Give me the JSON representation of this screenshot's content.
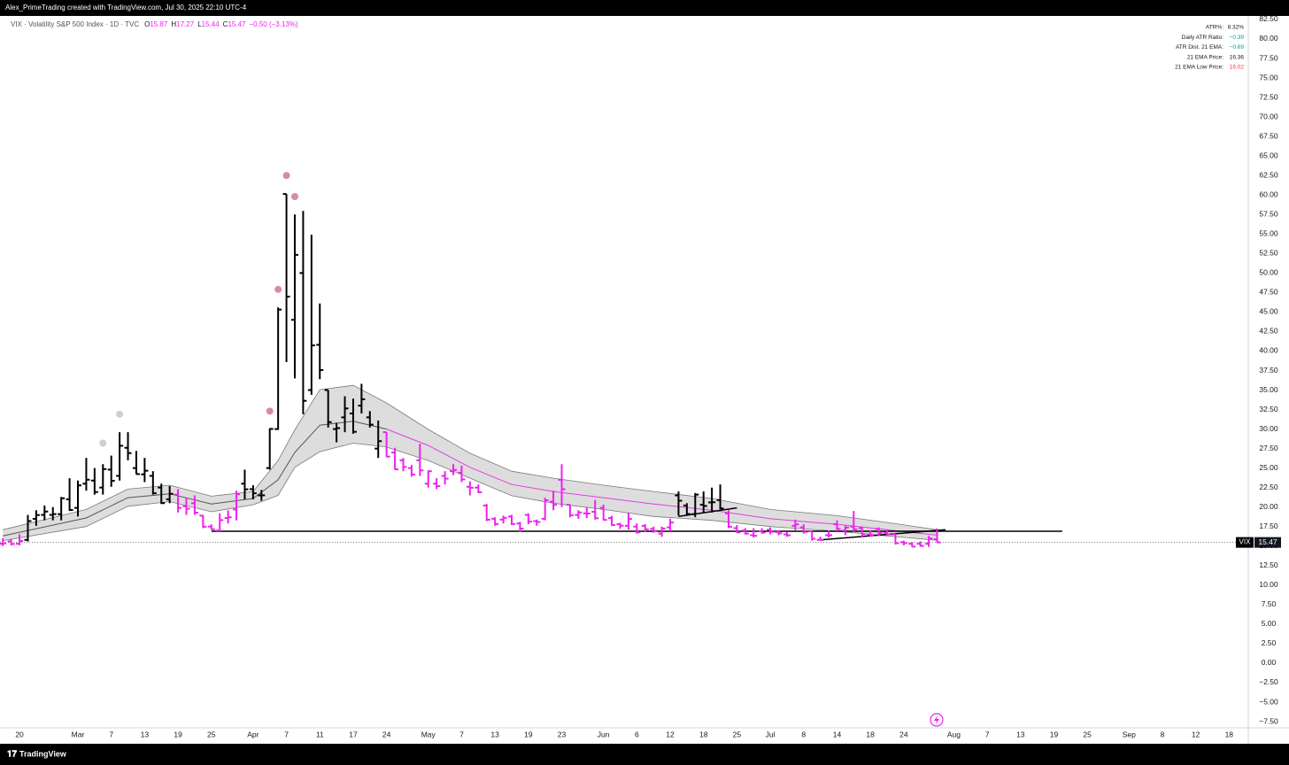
{
  "header": {
    "credit": "Alex_PrimeTrading created with TradingView.com, Jul 30, 2025 22:10 UTC-4",
    "footer": "TradingView"
  },
  "table": {
    "rows": [
      [
        "ATR%:",
        "8.32%"
      ],
      [
        "Daily ATR Ratio:",
        "−0.39"
      ],
      [
        "ATR Dist. 21 EMA:",
        "−0.69"
      ],
      [
        "21 EMA Price:",
        "16.36"
      ],
      [
        "21 EMA Low Price:",
        "16.02"
      ]
    ],
    "value_colors": [
      "#131722",
      "#089981",
      "#089981",
      "#131722",
      "#f23645"
    ]
  },
  "chart_data": {
    "type": "ohlc",
    "title": "VIX · Volatility S&P 500 Index · 1D · TVC",
    "ohlc_keys": [
      "O",
      "H",
      "L",
      "C"
    ],
    "change_label": "−0.50 (−3.13%)",
    "symbol": "VIX",
    "xlim": [
      -0.34,
      149.3
    ],
    "xticks": [
      {
        "value": 2,
        "label": "20"
      },
      {
        "value": 9,
        "label": "Mar"
      },
      {
        "value": 13,
        "label": "7"
      },
      {
        "value": 17,
        "label": "13"
      },
      {
        "value": 21,
        "label": "19"
      },
      {
        "value": 25,
        "label": "25"
      },
      {
        "value": 30,
        "label": "Apr"
      },
      {
        "value": 34,
        "label": "7"
      },
      {
        "value": 38,
        "label": "11"
      },
      {
        "value": 42,
        "label": "17"
      },
      {
        "value": 46,
        "label": "24"
      },
      {
        "value": 51,
        "label": "May"
      },
      {
        "value": 55,
        "label": "7"
      },
      {
        "value": 59,
        "label": "13"
      },
      {
        "value": 63,
        "label": "19"
      },
      {
        "value": 67,
        "label": "23"
      },
      {
        "value": 72,
        "label": "Jun"
      },
      {
        "value": 76,
        "label": "6"
      },
      {
        "value": 80,
        "label": "12"
      },
      {
        "value": 84,
        "label": "18"
      },
      {
        "value": 88,
        "label": "25"
      },
      {
        "value": 92,
        "label": "Jul"
      },
      {
        "value": 96,
        "label": "8"
      },
      {
        "value": 100,
        "label": "14"
      },
      {
        "value": 104,
        "label": "18"
      },
      {
        "value": 108,
        "label": "24"
      },
      {
        "value": 114,
        "label": "Aug"
      },
      {
        "value": 118,
        "label": "7"
      },
      {
        "value": 122,
        "label": "13"
      },
      {
        "value": 126,
        "label": "19"
      },
      {
        "value": 130,
        "label": "25"
      },
      {
        "value": 135,
        "label": "Sep"
      },
      {
        "value": 139,
        "label": "8"
      },
      {
        "value": 143,
        "label": "12"
      },
      {
        "value": 147,
        "label": "18"
      }
    ],
    "ylim": [
      -8.29,
      82.95
    ],
    "yticks": [
      {
        "value": -7.5,
        "label": "−7.50"
      },
      {
        "value": -5,
        "label": "−5.00"
      },
      {
        "value": -2.5,
        "label": "−2.50"
      },
      {
        "value": 0,
        "label": "0.00"
      },
      {
        "value": 2.5,
        "label": "2.50"
      },
      {
        "value": 5,
        "label": "5.00"
      },
      {
        "value": 7.5,
        "label": "7.50"
      },
      {
        "value": 10,
        "label": "10.00"
      },
      {
        "value": 12.5,
        "label": "12.50"
      },
      {
        "value": 15,
        "label": "15.00"
      },
      {
        "value": 17.5,
        "label": "17.50"
      },
      {
        "value": 20,
        "label": "20.00"
      },
      {
        "value": 22.5,
        "label": "22.50"
      },
      {
        "value": 25,
        "label": "25.00"
      },
      {
        "value": 27.5,
        "label": "27.50"
      },
      {
        "value": 30,
        "label": "30.00"
      },
      {
        "value": 32.5,
        "label": "32.50"
      },
      {
        "value": 35,
        "label": "35.00"
      },
      {
        "value": 37.5,
        "label": "37.50"
      },
      {
        "value": 40,
        "label": "40.00"
      },
      {
        "value": 42.5,
        "label": "42.50"
      },
      {
        "value": 45,
        "label": "45.00"
      },
      {
        "value": 47.5,
        "label": "47.50"
      },
      {
        "value": 50,
        "label": "50.00"
      },
      {
        "value": 52.5,
        "label": "52.50"
      },
      {
        "value": 55,
        "label": "55.00"
      },
      {
        "value": 57.5,
        "label": "57.50"
      },
      {
        "value": 60,
        "label": "60.00"
      },
      {
        "value": 62.5,
        "label": "62.50"
      },
      {
        "value": 65,
        "label": "65.00"
      },
      {
        "value": 67.5,
        "label": "67.50"
      },
      {
        "value": 70,
        "label": "70.00"
      },
      {
        "value": 72.5,
        "label": "72.50"
      },
      {
        "value": 75,
        "label": "75.00"
      },
      {
        "value": 77.5,
        "label": "77.50"
      },
      {
        "value": 80,
        "label": "80.00"
      },
      {
        "value": 82.5,
        "label": "82.50"
      }
    ],
    "grid": false,
    "ohlc": {
      "open": [
        15.3,
        15.6,
        15.3,
        15.8,
        18.5,
        19.0,
        19.0,
        19.1,
        21.0,
        19.9,
        23.0,
        23.4,
        22.5,
        24.8,
        24.0,
        27.6,
        25.0,
        24.2,
        24.0,
        22.5,
        21.0,
        21.6,
        20.1,
        20.5,
        18.9,
        17.5,
        17.0,
        18.6,
        19.7,
        23.0,
        22.3,
        21.5,
        25.0,
        30.0,
        60.13,
        44.0,
        50.0,
        35.0,
        40.8,
        35.0,
        30.0,
        31.5,
        32.0,
        33.0,
        31.5,
        27.5,
        29.6,
        27.0,
        26.0,
        25.0,
        26.0,
        23.0,
        23.0,
        24.0,
        24.6,
        24.4,
        22.6,
        22.5,
        20.2,
        18.5,
        18.4,
        18.8,
        17.9,
        19.0,
        18.2,
        18.5,
        20.7,
        23.5,
        20.3,
        19.0,
        19.2,
        19.4,
        19.9,
        18.6,
        17.8,
        17.6,
        17.5,
        17.6,
        17.2,
        16.6,
        17.4,
        21.5,
        20.2,
        19.1,
        20.3,
        20.6,
        20.9,
        19.2,
        17.3,
        17.0,
        16.4,
        16.9,
        17.1,
        16.8,
        16.5,
        17.6,
        17.4,
        16.9,
        15.8,
        16.4,
        17.8,
        17.0,
        17.5,
        17.3,
        16.5,
        17.2,
        16.7,
        16.5,
        15.5,
        15.3,
        15.3,
        15.3,
        15.87
      ],
      "high": [
        16.0,
        15.9,
        16.5,
        19.0,
        19.6,
        20.2,
        20.0,
        21.3,
        23.7,
        23.4,
        26.3,
        25.0,
        25.5,
        26.6,
        29.6,
        29.6,
        27.2,
        26.3,
        24.6,
        23.0,
        22.7,
        22.3,
        21.2,
        21.5,
        19.0,
        17.8,
        19.2,
        19.6,
        22.1,
        24.8,
        22.8,
        22.2,
        30.1,
        45.6,
        60.13,
        57.5,
        57.96,
        54.9,
        46.1,
        35.0,
        30.8,
        34.2,
        33.9,
        35.8,
        32.3,
        31.1,
        29.6,
        27.6,
        26.3,
        25.4,
        28.1,
        24.7,
        23.7,
        24.6,
        25.5,
        25.3,
        23.3,
        22.9,
        20.4,
        18.7,
        18.9,
        19.0,
        18.1,
        19.2,
        18.4,
        21.2,
        22.1,
        25.5,
        20.3,
        19.6,
        20.0,
        20.9,
        20.3,
        18.9,
        18.0,
        19.3,
        17.9,
        17.8,
        17.5,
        17.5,
        18.5,
        22.0,
        20.5,
        21.8,
        22.0,
        22.5,
        22.9,
        19.6,
        17.7,
        17.3,
        17.3,
        17.3,
        17.4,
        17.0,
        16.8,
        18.4,
        17.8,
        16.9,
        16.2,
        17.0,
        18.3,
        17.6,
        19.5,
        17.5,
        17.0,
        17.4,
        17.1,
        16.6,
        15.7,
        15.5,
        15.6,
        16.3,
        17.27
      ],
      "low": [
        15.0,
        15.1,
        15.1,
        15.6,
        17.6,
        18.3,
        18.3,
        18.3,
        19.5,
        18.8,
        22.1,
        21.6,
        21.6,
        22.6,
        23.4,
        26.0,
        24.2,
        23.2,
        21.6,
        20.4,
        20.5,
        19.3,
        19.0,
        19.0,
        17.3,
        17.1,
        16.9,
        17.9,
        18.3,
        21.0,
        21.0,
        20.8,
        24.8,
        29.9,
        38.58,
        36.5,
        31.9,
        34.4,
        36.4,
        30.2,
        28.3,
        29.6,
        29.4,
        32.0,
        30.2,
        26.3,
        26.4,
        24.8,
        24.6,
        23.9,
        24.0,
        22.5,
        22.3,
        22.9,
        24.1,
        23.2,
        21.5,
        21.8,
        18.2,
        17.6,
        17.9,
        17.7,
        16.8,
        17.8,
        17.6,
        18.3,
        19.6,
        20.0,
        18.7,
        18.5,
        18.6,
        18.4,
        18.3,
        17.6,
        17.2,
        17.1,
        16.6,
        16.8,
        16.7,
        16.2,
        16.9,
        18.9,
        18.9,
        18.7,
        19.3,
        19.3,
        19.7,
        17.3,
        16.7,
        16.5,
        16.1,
        16.6,
        16.5,
        16.4,
        16.2,
        17.0,
        16.6,
        15.7,
        15.7,
        16.1,
        16.9,
        16.4,
        16.8,
        16.2,
        16.2,
        16.3,
        16.3,
        15.2,
        15.1,
        14.9,
        14.9,
        14.9,
        15.44
      ],
      "close": [
        15.35,
        15.27,
        15.66,
        18.21,
        18.98,
        19.43,
        19.1,
        21.13,
        19.63,
        22.78,
        23.51,
        21.93,
        24.87,
        23.37,
        27.86,
        26.92,
        24.23,
        24.66,
        21.77,
        20.51,
        21.7,
        19.9,
        19.8,
        19.28,
        17.48,
        17.15,
        18.33,
        18.69,
        21.65,
        22.28,
        21.77,
        21.51,
        30.02,
        45.31,
        46.98,
        52.33,
        33.62,
        40.72,
        37.56,
        30.89,
        30.12,
        32.64,
        29.65,
        33.82,
        30.57,
        28.45,
        26.47,
        24.84,
        25.15,
        24.17,
        24.7,
        24.6,
        22.68,
        23.64,
        24.76,
        23.55,
        22.48,
        21.9,
        18.39,
        17.83,
        18.62,
        17.83,
        17.24,
        18.14,
        18.09,
        20.87,
        20.28,
        22.29,
        18.96,
        19.31,
        19.18,
        18.57,
        18.36,
        17.69,
        17.61,
        18.48,
        16.77,
        17.16,
        16.95,
        17.26,
        18.02,
        20.82,
        19.11,
        21.6,
        20.14,
        20.62,
        19.83,
        17.48,
        16.76,
        16.59,
        16.32,
        16.73,
        16.83,
        16.64,
        16.38,
        17.79,
        16.81,
        15.94,
        15.78,
        16.4,
        17.2,
        17.38,
        17.16,
        16.52,
        16.41,
        16.65,
        16.5,
        15.37,
        15.39,
        14.93,
        15.03,
        15.98,
        15.47
      ],
      "colors": [
        "#e2e",
        "#e2e",
        "#e2e",
        "#000",
        "#000",
        "#000",
        "#000",
        "#000",
        "#000",
        "#000",
        "#000",
        "#000",
        "#000",
        "#000",
        "#000",
        "#000",
        "#000",
        "#000",
        "#000",
        "#000",
        "#000",
        "#e2e",
        "#e2e",
        "#e2e",
        "#e2e",
        "#e2e",
        "#e2e",
        "#e2e",
        "#e2e",
        "#000",
        "#000",
        "#000",
        "#000",
        "#000",
        "#000",
        "#000",
        "#000",
        "#000",
        "#000",
        "#000",
        "#000",
        "#000",
        "#000",
        "#000",
        "#000",
        "#000",
        "#e2e",
        "#e2e",
        "#e2e",
        "#e2e",
        "#e2e",
        "#e2e",
        "#e2e",
        "#e2e",
        "#e2e",
        "#e2e",
        "#e2e",
        "#e2e",
        "#e2e",
        "#e2e",
        "#e2e",
        "#e2e",
        "#e2e",
        "#e2e",
        "#e2e",
        "#e2e",
        "#e2e",
        "#e2e",
        "#e2e",
        "#e2e",
        "#e2e",
        "#e2e",
        "#e2e",
        "#e2e",
        "#e2e",
        "#e2e",
        "#e2e",
        "#e2e",
        "#e2e",
        "#e2e",
        "#e2e",
        "#000",
        "#000",
        "#000",
        "#000",
        "#000",
        "#000",
        "#e2e",
        "#e2e",
        "#e2e",
        "#e2e",
        "#e2e",
        "#e2e",
        "#e2e",
        "#e2e",
        "#e2e",
        "#e2e",
        "#e2e",
        "#e2e",
        "#e2e",
        "#e2e",
        "#e2e",
        "#e2e",
        "#e2e",
        "#e2e",
        "#e2e",
        "#e2e",
        "#e2e",
        "#e2e",
        "#e2e",
        "#e2e",
        "#e2e",
        "#e2e"
      ]
    },
    "band": {
      "x": [
        0,
        10,
        15,
        20,
        25,
        30,
        33,
        35,
        38,
        42,
        46,
        51,
        56,
        61,
        66,
        72,
        78,
        85,
        92,
        100,
        106,
        112
      ],
      "upper": [
        17.1,
        19.7,
        22.3,
        22.8,
        21.4,
        22.0,
        25.97,
        29.9,
        35.05,
        35.6,
        33.35,
        29.95,
        26.9,
        24.6,
        23.7,
        22.8,
        22.0,
        21.1,
        19.7,
        18.9,
        18.03,
        17.1
      ],
      "lower": [
        15.7,
        17.5,
        20.1,
        20.7,
        19.4,
        20.3,
        21.5,
        25.1,
        27.1,
        28.2,
        27.7,
        25.97,
        23.7,
        21.45,
        20.5,
        19.7,
        18.8,
        18.3,
        17.5,
        16.9,
        16.3,
        15.75
      ],
      "color": "#d9d9d9",
      "edge": "#7a7a7a"
    },
    "ema": [
      {
        "x": [
          0,
          10,
          15,
          20,
          25,
          30,
          33,
          35,
          38,
          42,
          46
        ],
        "values": [
          16.3,
          18.6,
          21.2,
          21.7,
          20.4,
          21.1,
          23.5,
          27.0,
          30.5,
          31.0,
          30.0
        ],
        "color": "#555"
      },
      {
        "x": [
          46,
          51,
          56,
          61,
          66,
          72,
          78,
          85,
          92,
          100,
          106,
          112
        ],
        "values": [
          30.0,
          27.9,
          25.1,
          22.9,
          22.0,
          21.2,
          20.4,
          19.6,
          18.5,
          17.8,
          17.1,
          16.4
        ],
        "color": "#e040e0"
      }
    ],
    "markers": {
      "x": [
        12,
        14,
        32,
        33,
        34,
        35
      ],
      "y": [
        28.2,
        31.9,
        32.3,
        47.9,
        62.5,
        59.8
      ],
      "colors": [
        "#cfcfcf",
        "#cfcfcf",
        "#d88aa8",
        "#d88aa8",
        "#d88aa8",
        "#d88aa8"
      ]
    },
    "levels": [
      {
        "x": [
          25,
          127
        ],
        "y": [
          16.9,
          16.9
        ]
      },
      {
        "x": [
          98,
          113
        ],
        "y": [
          15.8,
          17.1
        ]
      },
      {
        "x": [
          81,
          88
        ],
        "y": [
          18.8,
          19.9
        ]
      }
    ]
  }
}
